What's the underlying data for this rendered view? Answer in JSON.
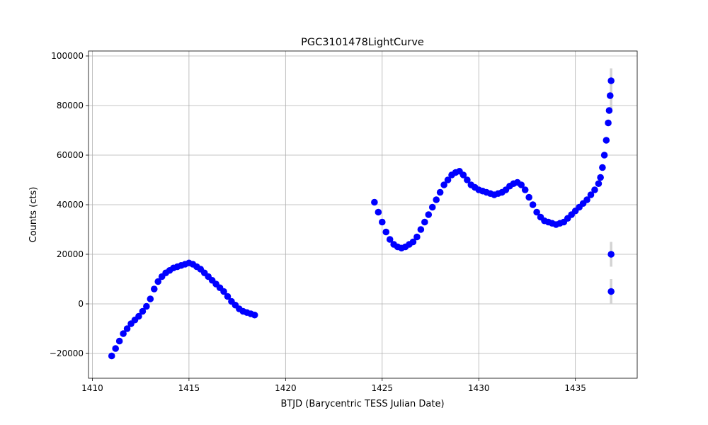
{
  "chart_data": {
    "type": "scatter",
    "title": "PGC3101478LightCurve",
    "xlabel": "BTJD (Barycentric TESS Julian Date)",
    "ylabel": "Counts (cts)",
    "xlim": [
      1409.8,
      1438.2
    ],
    "ylim": [
      -30000,
      102000
    ],
    "x_ticks": [
      1410,
      1415,
      1420,
      1425,
      1430,
      1435
    ],
    "x_tick_labels": [
      "1410",
      "1415",
      "1420",
      "1425",
      "1430",
      "1435"
    ],
    "y_ticks": [
      -20000,
      0,
      20000,
      40000,
      60000,
      80000,
      100000
    ],
    "y_tick_labels": [
      "−20000",
      "0",
      "20000",
      "40000",
      "60000",
      "80000",
      "100000"
    ],
    "grid": true,
    "marker_color": "#0000ff",
    "errorbar_color": "#d3d3d3",
    "series": [
      {
        "marker": "circle",
        "x": [
          1411.0,
          1411.2,
          1411.4,
          1411.6,
          1411.8,
          1412.0,
          1412.2,
          1412.4,
          1412.6,
          1412.8,
          1413.0,
          1413.2,
          1413.4,
          1413.6,
          1413.8,
          1414.0,
          1414.2,
          1414.4,
          1414.6,
          1414.8,
          1415.0,
          1415.2,
          1415.4,
          1415.6,
          1415.8,
          1416.0,
          1416.2,
          1416.4,
          1416.6,
          1416.8,
          1417.0,
          1417.2,
          1417.4,
          1417.6,
          1417.8,
          1418.0,
          1418.2,
          1418.4,
          1424.6,
          1424.8,
          1425.0,
          1425.2,
          1425.4,
          1425.6,
          1425.8,
          1426.0,
          1426.2,
          1426.4,
          1426.6,
          1426.8,
          1427.0,
          1427.2,
          1427.4,
          1427.6,
          1427.8,
          1428.0,
          1428.2,
          1428.4,
          1428.6,
          1428.8,
          1429.0,
          1429.2,
          1429.4,
          1429.6,
          1429.8,
          1430.0,
          1430.2,
          1430.4,
          1430.6,
          1430.8,
          1431.0,
          1431.2,
          1431.4,
          1431.6,
          1431.8,
          1432.0,
          1432.2,
          1432.4,
          1432.6,
          1432.8,
          1433.0,
          1433.2,
          1433.4,
          1433.6,
          1433.8,
          1434.0,
          1434.2,
          1434.4,
          1434.6,
          1434.8,
          1435.0,
          1435.2,
          1435.4,
          1435.6,
          1435.8,
          1436.0,
          1436.2,
          1436.3,
          1436.4,
          1436.5,
          1436.6,
          1436.7,
          1436.75,
          1436.8,
          1436.85
        ],
        "y": [
          -21000,
          -18000,
          -15000,
          -12000,
          -10000,
          -8000,
          -6500,
          -5000,
          -3000,
          -1000,
          2000,
          6000,
          9000,
          11000,
          12500,
          13500,
          14500,
          15000,
          15500,
          16000,
          16500,
          16000,
          15000,
          14000,
          12500,
          11000,
          9500,
          8000,
          6500,
          5000,
          3000,
          1000,
          -500,
          -2000,
          -3000,
          -3500,
          -4000,
          -4500,
          41000,
          37000,
          33000,
          29000,
          26000,
          24000,
          23000,
          22500,
          23000,
          24000,
          25000,
          27000,
          30000,
          33000,
          36000,
          39000,
          42000,
          45000,
          48000,
          50000,
          52000,
          53000,
          53500,
          52000,
          50000,
          48000,
          47000,
          46000,
          45500,
          45000,
          44500,
          44000,
          44500,
          45000,
          46000,
          47500,
          48500,
          49000,
          48000,
          46000,
          43000,
          40000,
          37000,
          35000,
          33500,
          33000,
          32500,
          32000,
          32500,
          33000,
          34500,
          36000,
          37500,
          39000,
          40500,
          42000,
          44000,
          46000,
          48500,
          51000,
          55000,
          60000,
          66000,
          73000,
          78000,
          84000,
          90000
        ],
        "yerr": []
      },
      {
        "marker": "circle",
        "x": [
          1436.85,
          1436.85
        ],
        "y": [
          20000,
          5000
        ],
        "yerr": [
          5000,
          5000
        ]
      },
      {
        "marker": "errorbar-only",
        "x": [
          1436.85,
          1436.85
        ],
        "y": [
          90000,
          82000
        ],
        "yerr": [
          5000,
          4000
        ]
      }
    ]
  }
}
